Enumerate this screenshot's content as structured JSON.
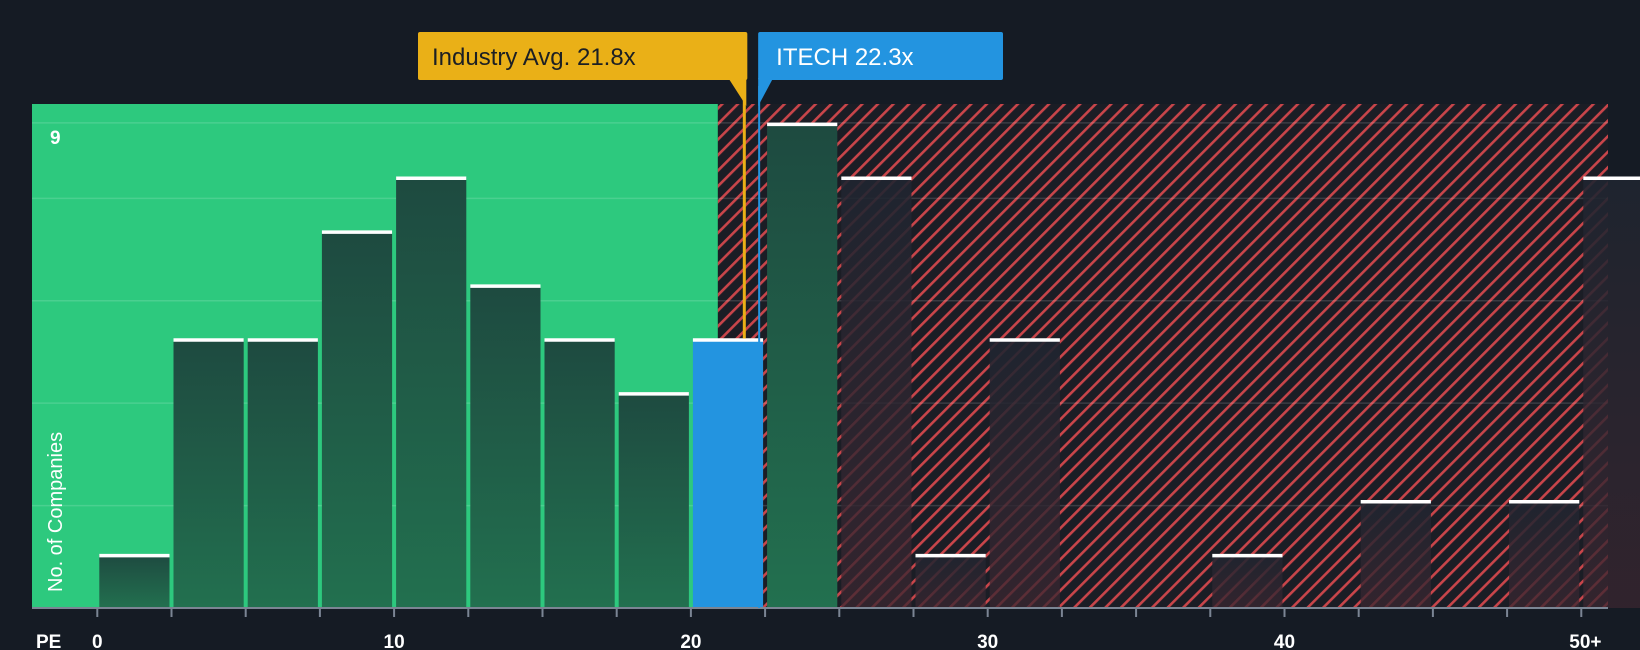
{
  "chart_data": {
    "type": "bar",
    "title": "",
    "xlabel": "PE",
    "ylabel": "No. of Companies",
    "bin_width": 2.5,
    "xlim": [
      -2.2,
      50.9
    ],
    "ylim": [
      0,
      9.35
    ],
    "x_ticks": [
      {
        "value": 0,
        "label": "0"
      },
      {
        "value": 10,
        "label": "10"
      },
      {
        "value": 20,
        "label": "20"
      },
      {
        "value": 30,
        "label": "30"
      },
      {
        "value": 40,
        "label": "40"
      },
      {
        "value": 50,
        "label": "50+"
      }
    ],
    "y_ticks": [
      {
        "value": 9,
        "label": "9"
      }
    ],
    "bins": [
      {
        "start": 0,
        "value": 1
      },
      {
        "start": 2.5,
        "value": 5
      },
      {
        "start": 5,
        "value": 5
      },
      {
        "start": 7.5,
        "value": 7
      },
      {
        "start": 10,
        "value": 8
      },
      {
        "start": 12.5,
        "value": 6
      },
      {
        "start": 15,
        "value": 5
      },
      {
        "start": 17.5,
        "value": 4
      },
      {
        "start": 20,
        "value": 5
      },
      {
        "start": 22.5,
        "value": 9
      },
      {
        "start": 25,
        "value": 8
      },
      {
        "start": 27.5,
        "value": 1
      },
      {
        "start": 30,
        "value": 5
      },
      {
        "start": 32.5,
        "value": 0
      },
      {
        "start": 35,
        "value": 0
      },
      {
        "start": 37.5,
        "value": 1
      },
      {
        "start": 40,
        "value": 0
      },
      {
        "start": 42.5,
        "value": 2
      },
      {
        "start": 45,
        "value": 0
      },
      {
        "start": 47.5,
        "value": 2
      },
      {
        "start": 50,
        "value": 8
      }
    ],
    "highlight_bin_start": 20,
    "fair_value_threshold": 22.8,
    "annotations": {
      "industry": {
        "label": "Industry Avg. 21.8x",
        "value": 21.8
      },
      "company": {
        "label": "ITECH 22.3x",
        "value": 22.3
      }
    },
    "colors": {
      "background": "#151b24",
      "good_zone": "#2dc97e",
      "good_bar": "#1f4a3f",
      "bad_zone_stripe": "#d24a4a",
      "bad_bar": "#252530",
      "highlight_bar": "#2394e0",
      "industry_callout": "#eab017",
      "company_callout": "#2394e0",
      "bar_cap": "#ffffff"
    }
  }
}
